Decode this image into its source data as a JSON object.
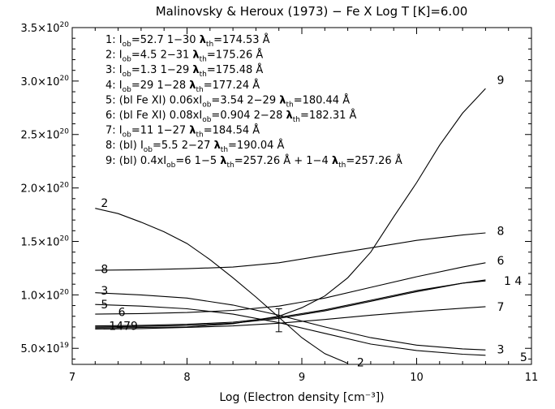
{
  "title": "Malinovsky & Heroux (1973) − Fe X  Log T [K]=6.00",
  "chart_data": {
    "type": "line",
    "title": "Malinovsky & Heroux (1973) − Fe X  Log T [K]=6.00",
    "xlabel": "Log (Electron density [cm⁻³])",
    "ylabel": "",
    "xlim": [
      7,
      11
    ],
    "ylim": [
      3.5e+19,
      3.5e+20
    ],
    "x_ticks": [
      {
        "value": 7,
        "label": "7"
      },
      {
        "value": 8,
        "label": "8"
      },
      {
        "value": 9,
        "label": "9"
      },
      {
        "value": 10,
        "label": "10"
      },
      {
        "value": 11,
        "label": "11"
      }
    ],
    "y_ticks": [
      {
        "value": 5e+19,
        "mant": "5.0×10",
        "exp": "19"
      },
      {
        "value": 1e+20,
        "mant": "1.0×10",
        "exp": "20"
      },
      {
        "value": 1.5e+20,
        "mant": "1.5×10",
        "exp": "20"
      },
      {
        "value": 2e+20,
        "mant": "2.0×10",
        "exp": "20"
      },
      {
        "value": 2.5e+20,
        "mant": "2.5×10",
        "exp": "20"
      },
      {
        "value": 3e+20,
        "mant": "3.0×10",
        "exp": "20"
      },
      {
        "value": 3.5e+20,
        "mant": "3.5×10",
        "exp": "20"
      }
    ],
    "legend": [
      "1: Iob=52.7 1−30 λth=174.53 Å",
      "2: Iob=4.5 2−31 λth=175.26 Å",
      "3: Iob=1.3 1−29 λth=175.48 Å",
      "4: Iob=29 1−28 λth=177.24 Å",
      "5: (bl Fe XI) 0.06xIob=3.54 2−29 λth=180.44 Å",
      "6: (bl Fe XI) 0.08xIob=0.904 2−28 λth=182.31 Å",
      "7: Iob=11 1−27 λth=184.54 Å",
      "8: (bl) Iob=5.5 2−27 λth=190.04 Å",
      "9: (bl) 0.4xIob=6  1−5 λth=257.26 Å + 1−4 λth=257.26 Å"
    ],
    "series": [
      {
        "name": "1",
        "x": [
          7.2,
          7.6,
          8.0,
          8.4,
          8.8,
          9.2,
          9.6,
          10.0,
          10.4,
          10.6
        ],
        "y": [
          7e+19,
          7.05e+19,
          7.15e+19,
          7.35e+19,
          7.8e+19,
          8.5e+19,
          9.4e+19,
          1.03e+20,
          1.11e+20,
          1.14e+20
        ]
      },
      {
        "name": "2",
        "x": [
          7.2,
          7.4,
          7.6,
          7.8,
          8.0,
          8.2,
          8.4,
          8.6,
          8.8,
          9.0,
          9.2,
          9.4
        ],
        "y": [
          1.81e+20,
          1.76e+20,
          1.68e+20,
          1.59e+20,
          1.48e+20,
          1.33e+20,
          1.16e+20,
          9.8e+19,
          7.9e+19,
          6e+19,
          4.5e+19,
          3.6e+19
        ]
      },
      {
        "name": "3",
        "x": [
          7.2,
          7.6,
          8.0,
          8.4,
          8.8,
          9.2,
          9.6,
          10.0,
          10.4,
          10.6
        ],
        "y": [
          1.02e+20,
          1e+20,
          9.7e+19,
          9.05e+19,
          8.1e+19,
          7e+19,
          6e+19,
          5.3e+19,
          4.95e+19,
          4.85e+19
        ]
      },
      {
        "name": "4",
        "x": [
          7.2,
          7.6,
          8.0,
          8.4,
          8.8,
          9.2,
          9.6,
          10.0,
          10.4,
          10.6
        ],
        "y": [
          7.1e+19,
          7.15e+19,
          7.25e+19,
          7.45e+19,
          7.9e+19,
          8.6e+19,
          9.5e+19,
          1.04e+20,
          1.11e+20,
          1.13e+20
        ]
      },
      {
        "name": "5",
        "x": [
          7.2,
          7.6,
          8.0,
          8.4,
          8.8,
          9.2,
          9.6,
          10.0,
          10.4,
          10.6
        ],
        "y": [
          9.1e+19,
          8.95e+19,
          8.7e+19,
          8.2e+19,
          7.4e+19,
          6.4e+19,
          5.4e+19,
          4.8e+19,
          4.45e+19,
          4.35e+19
        ]
      },
      {
        "name": "6",
        "x": [
          7.2,
          7.6,
          8.0,
          8.4,
          8.8,
          9.2,
          9.6,
          10.0,
          10.4,
          10.6
        ],
        "y": [
          8.2e+19,
          8.25e+19,
          8.35e+19,
          8.55e+19,
          8.95e+19,
          9.7e+19,
          1.07e+20,
          1.17e+20,
          1.26e+20,
          1.3e+20
        ]
      },
      {
        "name": "7",
        "x": [
          7.2,
          7.6,
          8.0,
          8.4,
          8.8,
          9.2,
          9.6,
          10.0,
          10.4,
          10.6
        ],
        "y": [
          6.8e+19,
          6.85e+19,
          6.95e+19,
          7.1e+19,
          7.35e+19,
          7.7e+19,
          8.1e+19,
          8.45e+19,
          8.75e+19,
          8.9e+19
        ]
      },
      {
        "name": "8",
        "x": [
          7.2,
          7.6,
          8.0,
          8.4,
          8.8,
          9.2,
          9.6,
          10.0,
          10.4,
          10.6
        ],
        "y": [
          1.23e+20,
          1.235e+20,
          1.245e+20,
          1.26e+20,
          1.3e+20,
          1.37e+20,
          1.44e+20,
          1.51e+20,
          1.56e+20,
          1.58e+20
        ]
      },
      {
        "name": "9",
        "x": [
          7.2,
          7.6,
          8.0,
          8.4,
          8.8,
          9.0,
          9.2,
          9.4,
          9.6,
          9.8,
          10.0,
          10.2,
          10.4,
          10.6
        ],
        "y": [
          6.9e+19,
          6.95e+19,
          7e+19,
          7.3e+19,
          8e+19,
          8.8e+19,
          9.9e+19,
          1.16e+20,
          1.4e+20,
          1.73e+20,
          2.05e+20,
          2.4e+20,
          2.7e+20,
          2.93e+20
        ]
      }
    ],
    "series_labels": [
      {
        "text": "2",
        "x": 7.25,
        "y": 1.86e+20
      },
      {
        "text": "8",
        "x": 7.25,
        "y": 1.24e+20
      },
      {
        "text": "3",
        "x": 7.25,
        "y": 1.04e+20
      },
      {
        "text": "5",
        "x": 7.25,
        "y": 9.1e+19
      },
      {
        "text": "6",
        "x": 7.4,
        "y": 8.4e+19
      },
      {
        "text": "1479",
        "x": 7.32,
        "y": 7.1e+19
      },
      {
        "text": "9",
        "x": 10.7,
        "y": 3.01e+20
      },
      {
        "text": "8",
        "x": 10.7,
        "y": 1.6e+20
      },
      {
        "text": "6",
        "x": 10.7,
        "y": 1.32e+20
      },
      {
        "text": "1 4",
        "x": 10.76,
        "y": 1.13e+20
      },
      {
        "text": "7",
        "x": 10.7,
        "y": 8.9e+19
      },
      {
        "text": "3",
        "x": 10.7,
        "y": 4.9e+19
      },
      {
        "text": "5",
        "x": 10.9,
        "y": 4.2e+19
      },
      {
        "text": "2",
        "x": 9.48,
        "y": 3.7e+19
      }
    ],
    "error_bar": {
      "x": 8.8,
      "y_low": 6.55e+19,
      "y_high": 8.7e+19
    }
  }
}
